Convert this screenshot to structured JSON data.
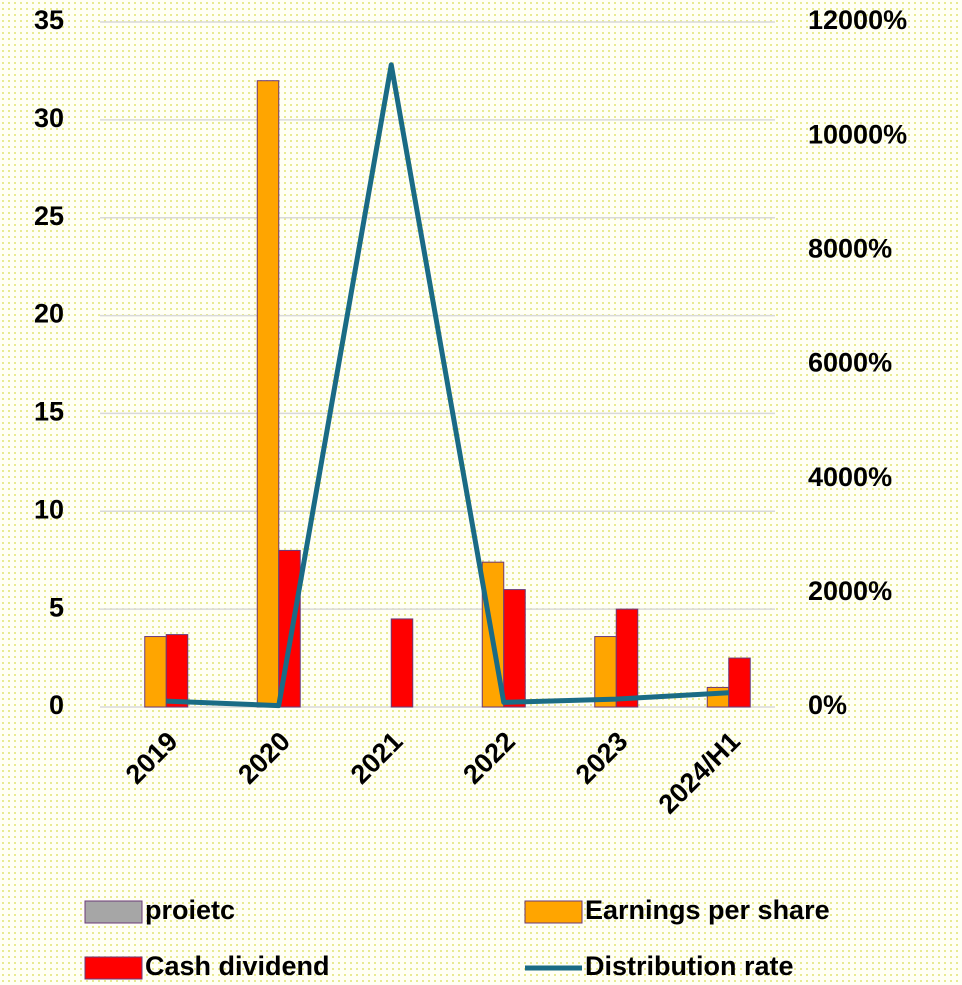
{
  "chart_data": {
    "type": "bar",
    "categories": [
      "2019",
      "2020",
      "2021",
      "2022",
      "2023",
      "2024/H1"
    ],
    "series": [
      {
        "name": "proietc",
        "color": "#a6a6a6",
        "values": [
          null,
          null,
          null,
          null,
          null,
          null
        ]
      },
      {
        "name": "Earnings per share",
        "color": "#ffa500",
        "values": [
          3.6,
          32,
          null,
          7.4,
          3.6,
          1.0
        ]
      },
      {
        "name": "Cash dividend",
        "color": "#ff0000",
        "values": [
          3.7,
          8,
          4.5,
          6,
          5,
          2.5
        ]
      },
      {
        "name": "Distribution rate",
        "color": "#1a6b85",
        "type": "line",
        "axis": "y2",
        "values": [
          103,
          25,
          11250,
          81,
          139,
          250
        ]
      }
    ],
    "ylim": [
      0,
      35
    ],
    "yticks": [
      0,
      5,
      10,
      15,
      20,
      25,
      30,
      35
    ],
    "y2lim": [
      0,
      12000
    ],
    "y2ticks": [
      {
        "value": 0,
        "label": "0%"
      },
      {
        "value": 2000,
        "label": "2000%"
      },
      {
        "value": 4000,
        "label": "4000%"
      },
      {
        "value": 6000,
        "label": "6000%"
      },
      {
        "value": 8000,
        "label": "8000%"
      },
      {
        "value": 10000,
        "label": "10000%"
      },
      {
        "value": 12000,
        "label": "12000%"
      }
    ],
    "grid": true,
    "legend": "bottom"
  }
}
